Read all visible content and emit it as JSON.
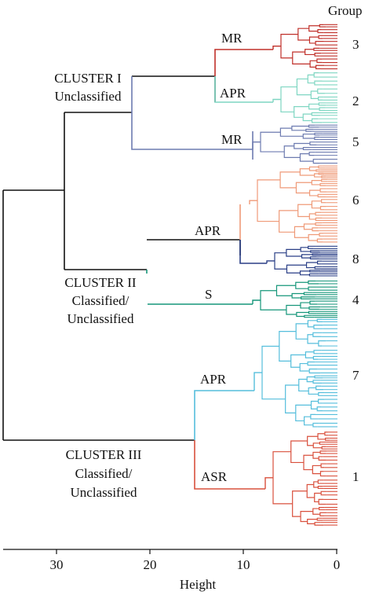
{
  "header": {
    "group_title": "Group"
  },
  "clusters": [
    {
      "name": "CLUSTER I",
      "subtitle": "Unclassified"
    },
    {
      "name": "CLUSTER II",
      "subtitle_1": "Classified/",
      "subtitle_2": "Unclassified"
    },
    {
      "name": "CLUSTER III",
      "subtitle_1": "Classified/",
      "subtitle_2": "Unclassified"
    }
  ],
  "branches": {
    "mr_top": "MR",
    "apr_upper": "APR",
    "mr_mid": "MR",
    "apr_mid": "APR",
    "s": "S",
    "apr_lower": "APR",
    "asr": "ASR"
  },
  "groups": [
    {
      "label": "3",
      "color": "#c0302a"
    },
    {
      "label": "2",
      "color": "#7fd6c2"
    },
    {
      "label": "5",
      "color": "#6d7bb0"
    },
    {
      "label": "6",
      "color": "#ef9a78"
    },
    {
      "label": "8",
      "color": "#2a3f86"
    },
    {
      "label": "4",
      "color": "#16967a"
    },
    {
      "label": "7",
      "color": "#55bedc"
    },
    {
      "label": "1",
      "color": "#d9503d"
    }
  ],
  "axis": {
    "label": "Height",
    "ticks": [
      "30",
      "20",
      "10",
      "0"
    ],
    "range": [
      36,
      0
    ]
  },
  "colors": {
    "trunk": "#111111"
  }
}
